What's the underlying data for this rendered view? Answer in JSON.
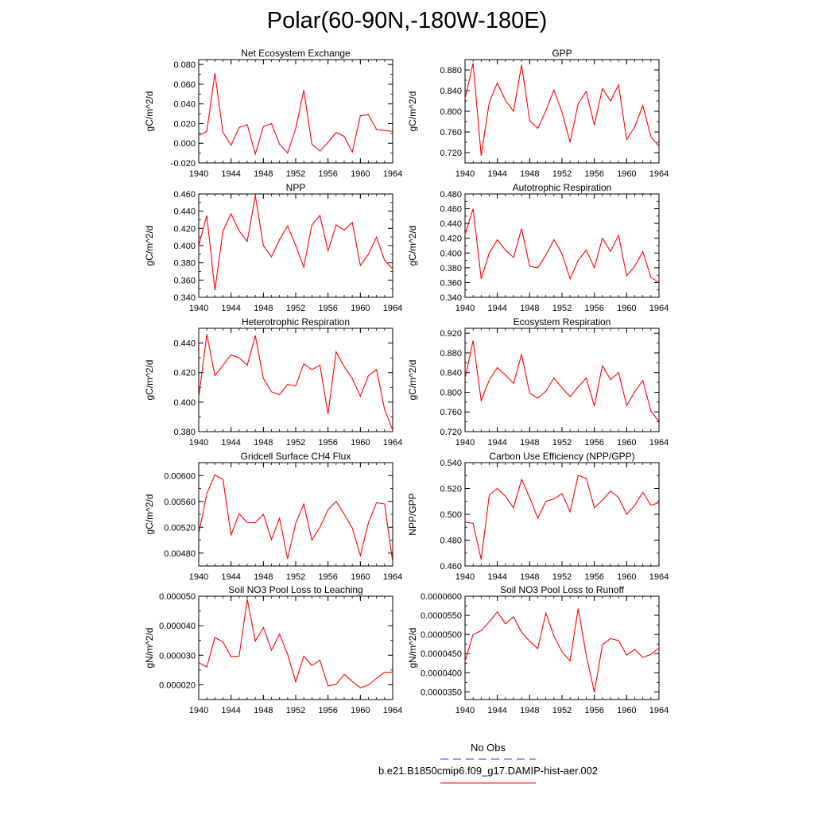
{
  "page": {
    "title": "Polar(60-90N,-180W-180E)"
  },
  "legend": {
    "placement": "bottom-center",
    "entries": [
      {
        "label": "No Obs",
        "color": "#3333ff",
        "dash": true
      },
      {
        "label": "b.e21.B1850cmip6.f09_g17.DAMIP-hist-aer.002",
        "color": "#ff0000",
        "dash": false
      }
    ]
  },
  "chart_data": [
    {
      "type": "line",
      "title": "Net Ecosystem Exchange",
      "ylabel": "gC/m^2/d",
      "xlim": [
        1940,
        1964
      ],
      "ylim": [
        -0.02,
        0.085
      ],
      "x_ticks": [
        "1940",
        "1944",
        "1948",
        "1952",
        "1956",
        "1960",
        "1964"
      ],
      "y_ticks": [
        {
          "value": -0.02,
          "label": "-0.020"
        },
        {
          "value": 0.0,
          "label": "0.000"
        },
        {
          "value": 0.02,
          "label": "0.020"
        },
        {
          "value": 0.04,
          "label": "0.040"
        },
        {
          "value": 0.06,
          "label": "0.060"
        },
        {
          "value": 0.08,
          "label": "0.080"
        }
      ],
      "series": [
        {
          "color": "#ff0000",
          "x": [
            1940,
            1941,
            1942,
            1943,
            1944,
            1945,
            1946,
            1947,
            1948,
            1949,
            1950,
            1951,
            1952,
            1953,
            1954,
            1955,
            1956,
            1957,
            1958,
            1959,
            1960,
            1961,
            1962,
            1963,
            1964
          ],
          "values": [
            0.008,
            0.012,
            0.071,
            0.011,
            -0.002,
            0.016,
            0.019,
            -0.011,
            0.017,
            0.02,
            -0.001,
            -0.01,
            0.015,
            0.054,
            -0.001,
            -0.008,
            0.001,
            0.011,
            0.007,
            -0.009,
            0.028,
            0.029,
            0.014,
            0.013,
            0.012
          ]
        }
      ]
    },
    {
      "type": "line",
      "title": "GPP",
      "ylabel": "gC/m^2/d",
      "xlim": [
        1940,
        1964
      ],
      "ylim": [
        0.7,
        0.9
      ],
      "x_ticks": [
        "1940",
        "1944",
        "1948",
        "1952",
        "1956",
        "1960",
        "1964"
      ],
      "y_ticks": [
        {
          "value": 0.72,
          "label": "0.720"
        },
        {
          "value": 0.76,
          "label": "0.760"
        },
        {
          "value": 0.8,
          "label": "0.800"
        },
        {
          "value": 0.84,
          "label": "0.840"
        },
        {
          "value": 0.88,
          "label": "0.880"
        }
      ],
      "series": [
        {
          "color": "#ff0000",
          "x": [
            1940,
            1941,
            1942,
            1943,
            1944,
            1945,
            1946,
            1947,
            1948,
            1949,
            1950,
            1951,
            1952,
            1953,
            1954,
            1955,
            1956,
            1957,
            1958,
            1959,
            1960,
            1961,
            1962,
            1963,
            1964
          ],
          "values": [
            0.825,
            0.893,
            0.714,
            0.817,
            0.855,
            0.821,
            0.8,
            0.89,
            0.782,
            0.767,
            0.801,
            0.841,
            0.798,
            0.74,
            0.815,
            0.838,
            0.773,
            0.844,
            0.82,
            0.851,
            0.745,
            0.77,
            0.811,
            0.751,
            0.732
          ]
        }
      ]
    },
    {
      "type": "line",
      "title": "NPP",
      "ylabel": "gC/m^2/d",
      "xlim": [
        1940,
        1964
      ],
      "ylim": [
        0.34,
        0.46
      ],
      "x_ticks": [
        "1940",
        "1944",
        "1948",
        "1952",
        "1956",
        "1960",
        "1964"
      ],
      "y_ticks": [
        {
          "value": 0.34,
          "label": "0.340"
        },
        {
          "value": 0.36,
          "label": "0.360"
        },
        {
          "value": 0.38,
          "label": "0.380"
        },
        {
          "value": 0.4,
          "label": "0.400"
        },
        {
          "value": 0.42,
          "label": "0.420"
        },
        {
          "value": 0.44,
          "label": "0.440"
        },
        {
          "value": 0.46,
          "label": "0.460"
        }
      ],
      "series": [
        {
          "color": "#ff0000",
          "x": [
            1940,
            1941,
            1942,
            1943,
            1944,
            1945,
            1946,
            1947,
            1948,
            1949,
            1950,
            1951,
            1952,
            1953,
            1954,
            1955,
            1956,
            1957,
            1958,
            1959,
            1960,
            1961,
            1962,
            1963,
            1964
          ],
          "values": [
            0.4,
            0.435,
            0.348,
            0.417,
            0.437,
            0.417,
            0.405,
            0.458,
            0.4,
            0.387,
            0.407,
            0.423,
            0.4,
            0.375,
            0.424,
            0.435,
            0.394,
            0.424,
            0.418,
            0.427,
            0.377,
            0.39,
            0.41,
            0.383,
            0.373
          ]
        }
      ]
    },
    {
      "type": "line",
      "title": "Autotrophic Respiration",
      "ylabel": "gC/m^2/d",
      "xlim": [
        1940,
        1964
      ],
      "ylim": [
        0.34,
        0.48
      ],
      "x_ticks": [
        "1940",
        "1944",
        "1948",
        "1952",
        "1956",
        "1960",
        "1964"
      ],
      "y_ticks": [
        {
          "value": 0.34,
          "label": "0.340"
        },
        {
          "value": 0.36,
          "label": "0.360"
        },
        {
          "value": 0.38,
          "label": "0.380"
        },
        {
          "value": 0.4,
          "label": "0.400"
        },
        {
          "value": 0.42,
          "label": "0.420"
        },
        {
          "value": 0.44,
          "label": "0.440"
        },
        {
          "value": 0.46,
          "label": "0.460"
        },
        {
          "value": 0.48,
          "label": "0.480"
        }
      ],
      "series": [
        {
          "color": "#ff0000",
          "x": [
            1940,
            1941,
            1942,
            1943,
            1944,
            1945,
            1946,
            1947,
            1948,
            1949,
            1950,
            1951,
            1952,
            1953,
            1954,
            1955,
            1956,
            1957,
            1958,
            1959,
            1960,
            1961,
            1962,
            1963,
            1964
          ],
          "values": [
            0.425,
            0.46,
            0.365,
            0.4,
            0.418,
            0.404,
            0.394,
            0.433,
            0.382,
            0.38,
            0.397,
            0.418,
            0.399,
            0.365,
            0.39,
            0.404,
            0.38,
            0.42,
            0.402,
            0.424,
            0.369,
            0.382,
            0.402,
            0.367,
            0.36
          ]
        }
      ]
    },
    {
      "type": "line",
      "title": "Heterotrophic Respiration",
      "ylabel": "gC/m^2/d",
      "xlim": [
        1940,
        1964
      ],
      "ylim": [
        0.38,
        0.45
      ],
      "x_ticks": [
        "1940",
        "1944",
        "1948",
        "1952",
        "1956",
        "1960",
        "1964"
      ],
      "y_ticks": [
        {
          "value": 0.38,
          "label": "0.380"
        },
        {
          "value": 0.4,
          "label": "0.400"
        },
        {
          "value": 0.42,
          "label": "0.420"
        },
        {
          "value": 0.44,
          "label": "0.440"
        }
      ],
      "series": [
        {
          "color": "#ff0000",
          "x": [
            1940,
            1941,
            1942,
            1943,
            1944,
            1945,
            1946,
            1947,
            1948,
            1949,
            1950,
            1951,
            1952,
            1953,
            1954,
            1955,
            1956,
            1957,
            1958,
            1959,
            1960,
            1961,
            1962,
            1963,
            1964
          ],
          "values": [
            0.403,
            0.446,
            0.418,
            0.425,
            0.432,
            0.43,
            0.425,
            0.445,
            0.416,
            0.407,
            0.405,
            0.412,
            0.411,
            0.426,
            0.422,
            0.425,
            0.392,
            0.434,
            0.424,
            0.416,
            0.404,
            0.418,
            0.422,
            0.395,
            0.381
          ]
        }
      ]
    },
    {
      "type": "line",
      "title": "Ecosystem Respiration",
      "ylabel": "gC/m^2/d",
      "xlim": [
        1940,
        1964
      ],
      "ylim": [
        0.72,
        0.93
      ],
      "x_ticks": [
        "1940",
        "1944",
        "1948",
        "1952",
        "1956",
        "1960",
        "1964"
      ],
      "y_ticks": [
        {
          "value": 0.72,
          "label": "0.720"
        },
        {
          "value": 0.76,
          "label": "0.760"
        },
        {
          "value": 0.8,
          "label": "0.800"
        },
        {
          "value": 0.84,
          "label": "0.840"
        },
        {
          "value": 0.88,
          "label": "0.880"
        },
        {
          "value": 0.92,
          "label": "0.920"
        }
      ],
      "series": [
        {
          "color": "#ff0000",
          "x": [
            1940,
            1941,
            1942,
            1943,
            1944,
            1945,
            1946,
            1947,
            1948,
            1949,
            1950,
            1951,
            1952,
            1953,
            1954,
            1955,
            1956,
            1957,
            1958,
            1959,
            1960,
            1961,
            1962,
            1963,
            1964
          ],
          "values": [
            0.828,
            0.905,
            0.783,
            0.825,
            0.85,
            0.835,
            0.818,
            0.877,
            0.798,
            0.788,
            0.802,
            0.829,
            0.809,
            0.791,
            0.811,
            0.829,
            0.772,
            0.854,
            0.826,
            0.84,
            0.773,
            0.801,
            0.824,
            0.762,
            0.74
          ]
        }
      ]
    },
    {
      "type": "line",
      "title": "Gridcell Surface CH4 Flux",
      "ylabel": "gC/m^2/d",
      "xlim": [
        1940,
        1964
      ],
      "ylim": [
        0.0046,
        0.0062
      ],
      "x_ticks": [
        "1940",
        "1944",
        "1948",
        "1952",
        "1956",
        "1960",
        "1964"
      ],
      "y_ticks": [
        {
          "value": 0.0048,
          "label": "0.00480"
        },
        {
          "value": 0.0052,
          "label": "0.00520"
        },
        {
          "value": 0.0056,
          "label": "0.00560"
        },
        {
          "value": 0.006,
          "label": "0.00600"
        }
      ],
      "series": [
        {
          "color": "#ff0000",
          "x": [
            1940,
            1941,
            1942,
            1943,
            1944,
            1945,
            1946,
            1947,
            1948,
            1949,
            1950,
            1951,
            1952,
            1953,
            1954,
            1955,
            1956,
            1957,
            1958,
            1959,
            1960,
            1961,
            1962,
            1963,
            1964
          ],
          "values": [
            0.0051,
            0.00572,
            0.00601,
            0.00594,
            0.00508,
            0.00541,
            0.00527,
            0.00527,
            0.0054,
            0.00501,
            0.00534,
            0.00471,
            0.00526,
            0.00556,
            0.005,
            0.0052,
            0.00547,
            0.0056,
            0.0054,
            0.00519,
            0.00476,
            0.00527,
            0.00558,
            0.00556,
            0.00466
          ]
        }
      ]
    },
    {
      "type": "line",
      "title": "Carbon Use Efficiency (NPP/GPP)",
      "ylabel": "NPP/GPP",
      "xlim": [
        1940,
        1964
      ],
      "ylim": [
        0.46,
        0.54
      ],
      "x_ticks": [
        "1940",
        "1944",
        "1948",
        "1952",
        "1956",
        "1960",
        "1964"
      ],
      "y_ticks": [
        {
          "value": 0.46,
          "label": "0.460"
        },
        {
          "value": 0.48,
          "label": "0.480"
        },
        {
          "value": 0.5,
          "label": "0.500"
        },
        {
          "value": 0.52,
          "label": "0.520"
        },
        {
          "value": 0.54,
          "label": "0.540"
        }
      ],
      "series": [
        {
          "color": "#ff0000",
          "x": [
            1940,
            1941,
            1942,
            1943,
            1944,
            1945,
            1946,
            1947,
            1948,
            1949,
            1950,
            1951,
            1952,
            1953,
            1954,
            1955,
            1956,
            1957,
            1958,
            1959,
            1960,
            1961,
            1962,
            1963,
            1964
          ],
          "values": [
            0.494,
            0.493,
            0.465,
            0.515,
            0.52,
            0.514,
            0.505,
            0.527,
            0.513,
            0.497,
            0.51,
            0.512,
            0.516,
            0.502,
            0.53,
            0.528,
            0.505,
            0.511,
            0.518,
            0.513,
            0.5,
            0.507,
            0.517,
            0.507,
            0.509
          ]
        }
      ]
    },
    {
      "type": "line",
      "title": "Soil NO3 Pool Loss to Leaching",
      "ylabel": "gN/m^2/d",
      "xlim": [
        1940,
        1964
      ],
      "ylim": [
        1.5e-05,
        5e-05
      ],
      "x_ticks": [
        "1940",
        "1944",
        "1948",
        "1952",
        "1956",
        "1960",
        "1964"
      ],
      "y_ticks": [
        {
          "value": 2e-05,
          "label": "0.000020"
        },
        {
          "value": 3e-05,
          "label": "0.000030"
        },
        {
          "value": 4e-05,
          "label": "0.000040"
        },
        {
          "value": 5e-05,
          "label": "0.000050"
        }
      ],
      "series": [
        {
          "color": "#ff0000",
          "x": [
            1940,
            1941,
            1942,
            1943,
            1944,
            1945,
            1946,
            1947,
            1948,
            1949,
            1950,
            1951,
            1952,
            1953,
            1954,
            1955,
            1956,
            1957,
            1958,
            1959,
            1960,
            1961,
            1962,
            1963,
            1964
          ],
          "values": [
            2.75e-05,
            2.6e-05,
            3.6e-05,
            3.45e-05,
            2.95e-05,
            2.97e-05,
            4.9e-05,
            3.48e-05,
            3.94e-05,
            3.17e-05,
            3.72e-05,
            3.03e-05,
            2.1e-05,
            2.97e-05,
            2.65e-05,
            2.83e-05,
            1.96e-05,
            2.01e-05,
            2.35e-05,
            2.11e-05,
            1.9e-05,
            1.99e-05,
            2.22e-05,
            2.42e-05,
            2.42e-05
          ]
        }
      ]
    },
    {
      "type": "line",
      "title": "Soil NO3 Pool Loss to Runoff",
      "ylabel": "gN/m^2/d",
      "xlim": [
        1940,
        1964
      ],
      "ylim": [
        3.3e-05,
        6e-05
      ],
      "x_ticks": [
        "1940",
        "1944",
        "1948",
        "1952",
        "1956",
        "1960",
        "1964"
      ],
      "y_ticks": [
        {
          "value": 3.5e-05,
          "label": "0.0000350"
        },
        {
          "value": 4e-05,
          "label": "0.0000400"
        },
        {
          "value": 4.5e-05,
          "label": "0.0000450"
        },
        {
          "value": 5e-05,
          "label": "0.0000500"
        },
        {
          "value": 5.5e-05,
          "label": "0.0000550"
        },
        {
          "value": 6e-05,
          "label": "0.0000600"
        }
      ],
      "series": [
        {
          "color": "#ff0000",
          "x": [
            1940,
            1941,
            1942,
            1943,
            1944,
            1945,
            1946,
            1947,
            1948,
            1949,
            1950,
            1951,
            1952,
            1953,
            1954,
            1955,
            1956,
            1957,
            1958,
            1959,
            1960,
            1961,
            1962,
            1963,
            1964
          ],
          "values": [
            4.3e-05,
            5e-05,
            5.1e-05,
            5.33e-05,
            5.59e-05,
            5.28e-05,
            5.46e-05,
            5.06e-05,
            4.82e-05,
            4.63e-05,
            5.56e-05,
            4.96e-05,
            4.55e-05,
            4.31e-05,
            5.68e-05,
            4.46e-05,
            3.49e-05,
            4.73e-05,
            4.89e-05,
            4.84e-05,
            4.46e-05,
            4.61e-05,
            4.4e-05,
            4.48e-05,
            4.65e-05
          ]
        }
      ]
    }
  ]
}
